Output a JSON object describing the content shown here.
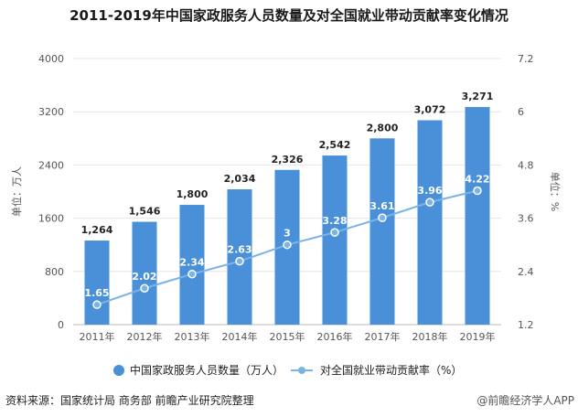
{
  "title": "2011-2019年中国家政服务人员数量及对全国就业带动贡献率变化情况",
  "source": "资料来源：国家统计局 商务部 前瞻产业研究院整理",
  "brand": "@前瞻经济学人APP",
  "colors": {
    "bar": "#4a90d9",
    "line": "#7ab3e6",
    "grid": "#e6e6e6"
  },
  "chart_data": {
    "type": "bar",
    "categories": [
      "2011年",
      "2012年",
      "2013年",
      "2014年",
      "2015年",
      "2016年",
      "2017年",
      "2018年",
      "2019年"
    ],
    "series": [
      {
        "name": "中国家政服务人员数量（万人）",
        "type": "bar",
        "axis": "left",
        "values": [
          1264,
          1546,
          1800,
          2034,
          2326,
          2542,
          2800,
          3072,
          3271
        ],
        "labels": [
          "1,264",
          "1,546",
          "1,800",
          "2,034",
          "2,326",
          "2,542",
          "2,800",
          "3,072",
          "3,271"
        ]
      },
      {
        "name": "对全国就业带动贡献率（%）",
        "type": "line",
        "axis": "right",
        "values": [
          1.65,
          2.02,
          2.34,
          2.63,
          3,
          3.28,
          3.61,
          3.96,
          4.22
        ],
        "labels": [
          "1.65",
          "2.02",
          "2.34",
          "2.63",
          "3",
          "3.28",
          "3.61",
          "3.96",
          "4.22"
        ]
      }
    ],
    "y_left": {
      "label": "单位：万人",
      "ylim": [
        0,
        4000
      ],
      "ticks": [
        "0",
        "800",
        "1600",
        "2400",
        "3200",
        "4000"
      ],
      "tick_values": [
        0,
        800,
        1600,
        2400,
        3200,
        4000
      ]
    },
    "y_right": {
      "label": "单位：%",
      "ylim": [
        1.2,
        7.2
      ],
      "ticks": [
        "1.2",
        "2.4",
        "3.6",
        "4.8",
        "6",
        "7.2"
      ],
      "tick_values": [
        1.2,
        2.4,
        3.6,
        4.8,
        6,
        7.2
      ]
    },
    "grid": true,
    "legend_position": "bottom"
  }
}
